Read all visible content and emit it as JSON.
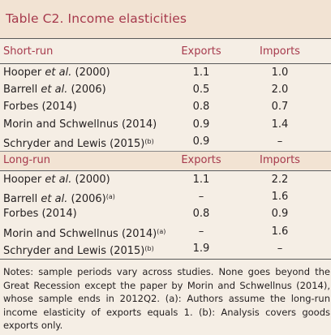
{
  "title": "Table C2. Income elasticities",
  "short_run": {
    "label": "Short-run",
    "col_exports": "Exports",
    "col_imports": "Imports",
    "rows": [
      {
        "pre": "Hooper ",
        "em": "et al.",
        "post": " (2000)",
        "sup": "",
        "exports": "1.1",
        "imports": "1.0"
      },
      {
        "pre": "Barrell ",
        "em": "et al.",
        "post": " (2006)",
        "sup": "",
        "exports": "0.5",
        "imports": "2.0"
      },
      {
        "pre": "Forbes (2014)",
        "em": "",
        "post": "",
        "sup": "",
        "exports": "0.8",
        "imports": "0.7"
      },
      {
        "pre": "Morin and Schwellnus (2014)",
        "em": "",
        "post": "",
        "sup": "",
        "exports": "0.9",
        "imports": "1.4"
      },
      {
        "pre": "Schryder and Lewis (2015)",
        "em": "",
        "post": "",
        "sup": "(b)",
        "exports": "0.9",
        "imports": "–"
      }
    ]
  },
  "long_run": {
    "label": "Long-run",
    "col_exports": "Exports",
    "col_imports": "Imports",
    "rows": [
      {
        "pre": "Hooper ",
        "em": "et al.",
        "post": " (2000)",
        "sup": "",
        "exports": "1.1",
        "imports": "2.2"
      },
      {
        "pre": "Barrell ",
        "em": "et al.",
        "post": " (2006)",
        "sup": "(a)",
        "exports": "–",
        "imports": "1.6"
      },
      {
        "pre": "Forbes (2014)",
        "em": "",
        "post": "",
        "sup": "",
        "exports": "0.8",
        "imports": "0.9"
      },
      {
        "pre": "Morin and Schwellnus (2014)",
        "em": "",
        "post": "",
        "sup": "(a)",
        "exports": "–",
        "imports": "1.6"
      },
      {
        "pre": "Schryder and Lewis (2015)",
        "em": "",
        "post": "",
        "sup": "(b)",
        "exports": "1.9",
        "imports": "–"
      }
    ]
  },
  "notes": "Notes: sample periods vary across studies. None goes beyond the Great Recession except the paper by Morin and Schwellnus (2014), whose sample ends in 2012Q2. (a): Authors assume the long-run income elasticity of exports equals 1. (b): Analysis covers goods exports only."
}
